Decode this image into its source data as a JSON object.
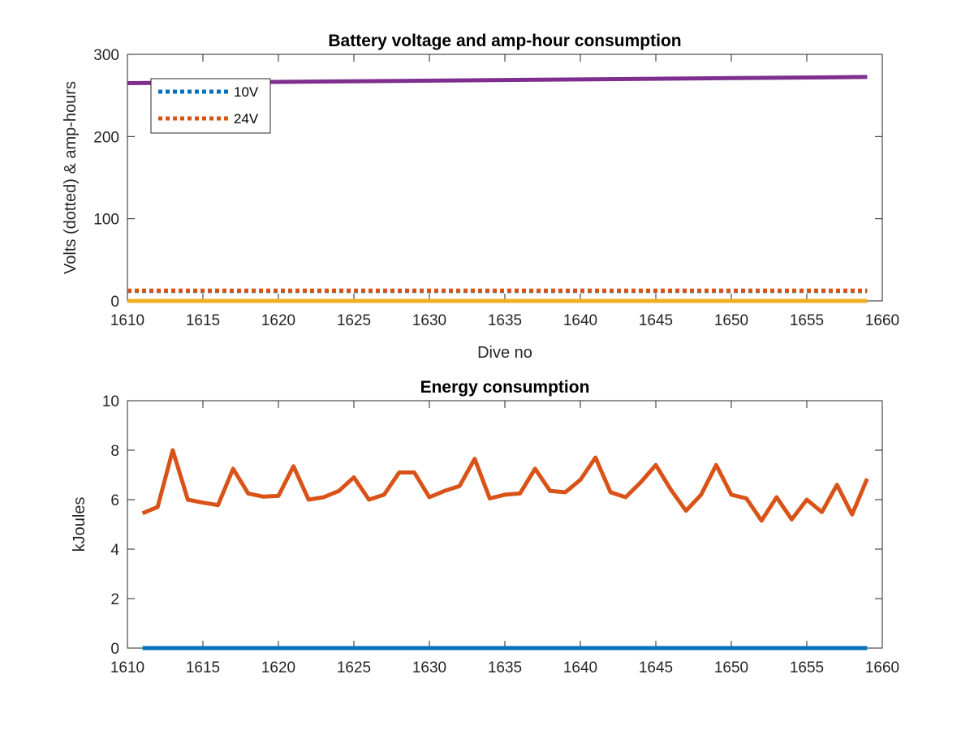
{
  "chart_data": [
    {
      "type": "line",
      "title": "Battery voltage and amp-hour consumption",
      "xlabel": "Dive no",
      "ylabel": "Volts (dotted) & amp-hours",
      "xlim": [
        1610,
        1660
      ],
      "ylim": [
        0,
        300
      ],
      "xticks": [
        "1610",
        "1615",
        "1620",
        "1625",
        "1630",
        "1635",
        "1640",
        "1645",
        "1650",
        "1655",
        "1660"
      ],
      "yticks": [
        "0",
        "100",
        "200",
        "300"
      ],
      "grid": false,
      "legend": {
        "position": "top-left",
        "entries": [
          "10V",
          "24V"
        ]
      },
      "series": [
        {
          "name": "10V",
          "style": "dotted",
          "color": "#0072BD",
          "x": [
            1610,
            1659
          ],
          "y": [
            12,
            12
          ]
        },
        {
          "name": "24V",
          "style": "dotted",
          "color": "#D95319",
          "x": [
            1610,
            1659
          ],
          "y": [
            12.5,
            12.5
          ]
        },
        {
          "style": "solid",
          "color": "#EDB120",
          "x": [
            1610,
            1659
          ],
          "y": [
            0,
            0
          ]
        },
        {
          "style": "solid",
          "color": "#7E2F8E",
          "x": [
            1610,
            1659
          ],
          "y": [
            265,
            272.5
          ]
        }
      ]
    },
    {
      "type": "line",
      "title": "Energy consumption",
      "xlabel": "",
      "ylabel": "kJoules",
      "xlim": [
        1610,
        1660
      ],
      "ylim": [
        0,
        10
      ],
      "xticks": [
        "1610",
        "1615",
        "1620",
        "1625",
        "1630",
        "1635",
        "1640",
        "1645",
        "1650",
        "1655",
        "1660"
      ],
      "yticks": [
        "0",
        "2",
        "4",
        "6",
        "8",
        "10"
      ],
      "grid": false,
      "series": [
        {
          "style": "solid",
          "color": "#D95319",
          "x": [
            1611,
            1612,
            1613,
            1614,
            1615,
            1616,
            1617,
            1618,
            1619,
            1620,
            1621,
            1622,
            1623,
            1624,
            1625,
            1626,
            1627,
            1628,
            1629,
            1630,
            1631,
            1632,
            1633,
            1634,
            1635,
            1636,
            1637,
            1638,
            1639,
            1640,
            1641,
            1642,
            1643,
            1644,
            1645,
            1646,
            1647,
            1648,
            1649,
            1650,
            1651,
            1652,
            1653,
            1654,
            1655,
            1656,
            1657,
            1658,
            1659
          ],
          "y": [
            5.45,
            5.7,
            8.0,
            6.0,
            5.88,
            5.78,
            7.25,
            6.25,
            6.12,
            6.15,
            7.35,
            6.0,
            6.1,
            6.35,
            6.9,
            6.0,
            6.2,
            7.1,
            7.1,
            6.1,
            6.35,
            6.55,
            7.65,
            6.05,
            6.2,
            6.25,
            7.25,
            6.35,
            6.3,
            6.8,
            7.7,
            6.3,
            6.1,
            6.7,
            7.4,
            6.4,
            5.55,
            6.2,
            7.4,
            6.2,
            6.05,
            5.15,
            6.1,
            5.2,
            6.0,
            5.5,
            6.6,
            5.4,
            6.85
          ]
        },
        {
          "style": "solid",
          "color": "#0072BD",
          "x": [
            1611,
            1659
          ],
          "y": [
            0,
            0
          ]
        }
      ]
    }
  ]
}
